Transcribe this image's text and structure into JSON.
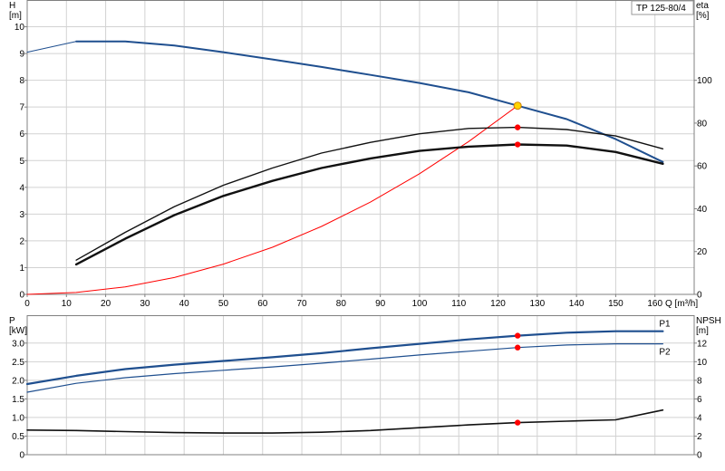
{
  "pump_label": "TP 125-80/4",
  "colors": {
    "blue": "#1f4f8f",
    "black": "#111111",
    "red": "#ff0000",
    "grid": "#d2d2d2",
    "axis": "#808080",
    "duty_fill": "#ffd400",
    "duty_stroke": "#d08000"
  },
  "chart_data": [
    {
      "type": "line",
      "panel": "head-efficiency",
      "title": "",
      "xlabel": "Q [m³/h]",
      "ylabel": "H\n[m]",
      "y2label": "eta\n[%]",
      "xlim": [
        0,
        170
      ],
      "ylim": [
        0,
        11
      ],
      "y2lim": [
        0,
        137.5
      ],
      "x_ticks": [
        0,
        10,
        20,
        30,
        40,
        50,
        60,
        70,
        80,
        90,
        100,
        110,
        120,
        130,
        140,
        150,
        160
      ],
      "y_ticks": [
        0,
        1,
        2,
        3,
        4,
        5,
        6,
        7,
        8,
        9,
        10
      ],
      "y2_ticks": [
        0,
        20,
        40,
        60,
        80,
        100
      ],
      "grid": true,
      "series": [
        {
          "role": "H",
          "axis": "left",
          "color": "#1f4f8f",
          "width": 2,
          "x": [
            12.5,
            25,
            37.5,
            50,
            62.5,
            75,
            87.5,
            100,
            112.5,
            125,
            137.5,
            150,
            162
          ],
          "y": [
            9.45,
            9.45,
            9.3,
            9.05,
            8.78,
            8.5,
            8.2,
            7.9,
            7.55,
            7.05,
            6.55,
            5.8,
            4.95
          ]
        },
        {
          "role": "H-extension",
          "axis": "left",
          "color": "#1f4f8f",
          "width": 1,
          "x": [
            0,
            12.5
          ],
          "y": [
            9.05,
            9.45
          ]
        },
        {
          "role": "system-curve",
          "axis": "left",
          "color": "#ff0000",
          "width": 1,
          "x": [
            0,
            12.5,
            25,
            37.5,
            50,
            62.5,
            75,
            87.5,
            100,
            112.5,
            125
          ],
          "y": [
            0,
            0.07,
            0.28,
            0.63,
            1.13,
            1.76,
            2.54,
            3.45,
            4.51,
            5.71,
            7.05
          ]
        },
        {
          "role": "eta-upper",
          "axis": "right",
          "color": "#111111",
          "width": 1.4,
          "x": [
            12.5,
            25,
            37.5,
            50,
            62.5,
            75,
            87.5,
            100,
            112.5,
            125,
            137.5,
            150,
            162
          ],
          "y": [
            16,
            29,
            41,
            51,
            59,
            66,
            71,
            75,
            77.5,
            78,
            77,
            74,
            68
          ]
        },
        {
          "role": "eta-lower",
          "axis": "right",
          "color": "#111111",
          "width": 2.4,
          "x": [
            12.5,
            25,
            37.5,
            50,
            62.5,
            75,
            87.5,
            100,
            112.5,
            125,
            137.5,
            150,
            162
          ],
          "y": [
            14,
            26,
            37,
            46,
            53,
            59,
            63.5,
            67,
            69,
            70,
            69.5,
            66.5,
            61
          ]
        }
      ],
      "duty_points": [
        {
          "x": 125,
          "y": 7.05,
          "axis": "left",
          "style": "duty"
        },
        {
          "x": 125,
          "y": 78,
          "axis": "right",
          "style": "red"
        },
        {
          "x": 125,
          "y": 70,
          "axis": "right",
          "style": "red"
        }
      ]
    },
    {
      "type": "line",
      "panel": "power-npsh",
      "title": "",
      "xlabel": "",
      "ylabel": "P\n[kW]",
      "y2label": "NPSH\n[m]",
      "xlim": [
        0,
        170
      ],
      "ylim": [
        0,
        3.75
      ],
      "y2lim": [
        0,
        15
      ],
      "y_ticks": [
        0,
        0.5,
        1.0,
        1.5,
        2.0,
        2.5,
        3.0
      ],
      "y_tick_labels": [
        "0",
        "0.5",
        "1.0",
        "1.5",
        "2.0",
        "2.5",
        "3.0"
      ],
      "y2_ticks": [
        0,
        2,
        4,
        6,
        8,
        10,
        12
      ],
      "grid": true,
      "series": [
        {
          "name": "P1",
          "axis": "left",
          "color": "#1f4f8f",
          "width": 2.2,
          "x": [
            0,
            12.5,
            25,
            37.5,
            50,
            62.5,
            75,
            87.5,
            100,
            112.5,
            125,
            137.5,
            150,
            162
          ],
          "y": [
            1.9,
            2.12,
            2.3,
            2.42,
            2.52,
            2.62,
            2.73,
            2.86,
            2.98,
            3.1,
            3.2,
            3.28,
            3.32,
            3.32
          ]
        },
        {
          "name": "P2",
          "axis": "left",
          "color": "#1f4f8f",
          "width": 1.2,
          "x": [
            0,
            12.5,
            25,
            37.5,
            50,
            62.5,
            75,
            87.5,
            100,
            112.5,
            125,
            137.5,
            150,
            162
          ],
          "y": [
            1.68,
            1.92,
            2.07,
            2.18,
            2.27,
            2.36,
            2.46,
            2.57,
            2.68,
            2.78,
            2.88,
            2.95,
            2.98,
            2.98
          ]
        },
        {
          "role": "NPSH",
          "axis": "right",
          "color": "#111111",
          "width": 1.6,
          "x": [
            0,
            12.5,
            25,
            37.5,
            50,
            62.5,
            75,
            87.5,
            100,
            112.5,
            125,
            137.5,
            150,
            162
          ],
          "y": [
            2.65,
            2.6,
            2.48,
            2.38,
            2.33,
            2.33,
            2.42,
            2.6,
            2.9,
            3.2,
            3.45,
            3.6,
            3.75,
            4.8
          ]
        }
      ],
      "duty_points": [
        {
          "x": 125,
          "y": 3.2,
          "axis": "left",
          "style": "red"
        },
        {
          "x": 125,
          "y": 2.88,
          "axis": "left",
          "style": "red"
        },
        {
          "x": 125,
          "y": 3.45,
          "axis": "right",
          "style": "red"
        }
      ]
    }
  ]
}
